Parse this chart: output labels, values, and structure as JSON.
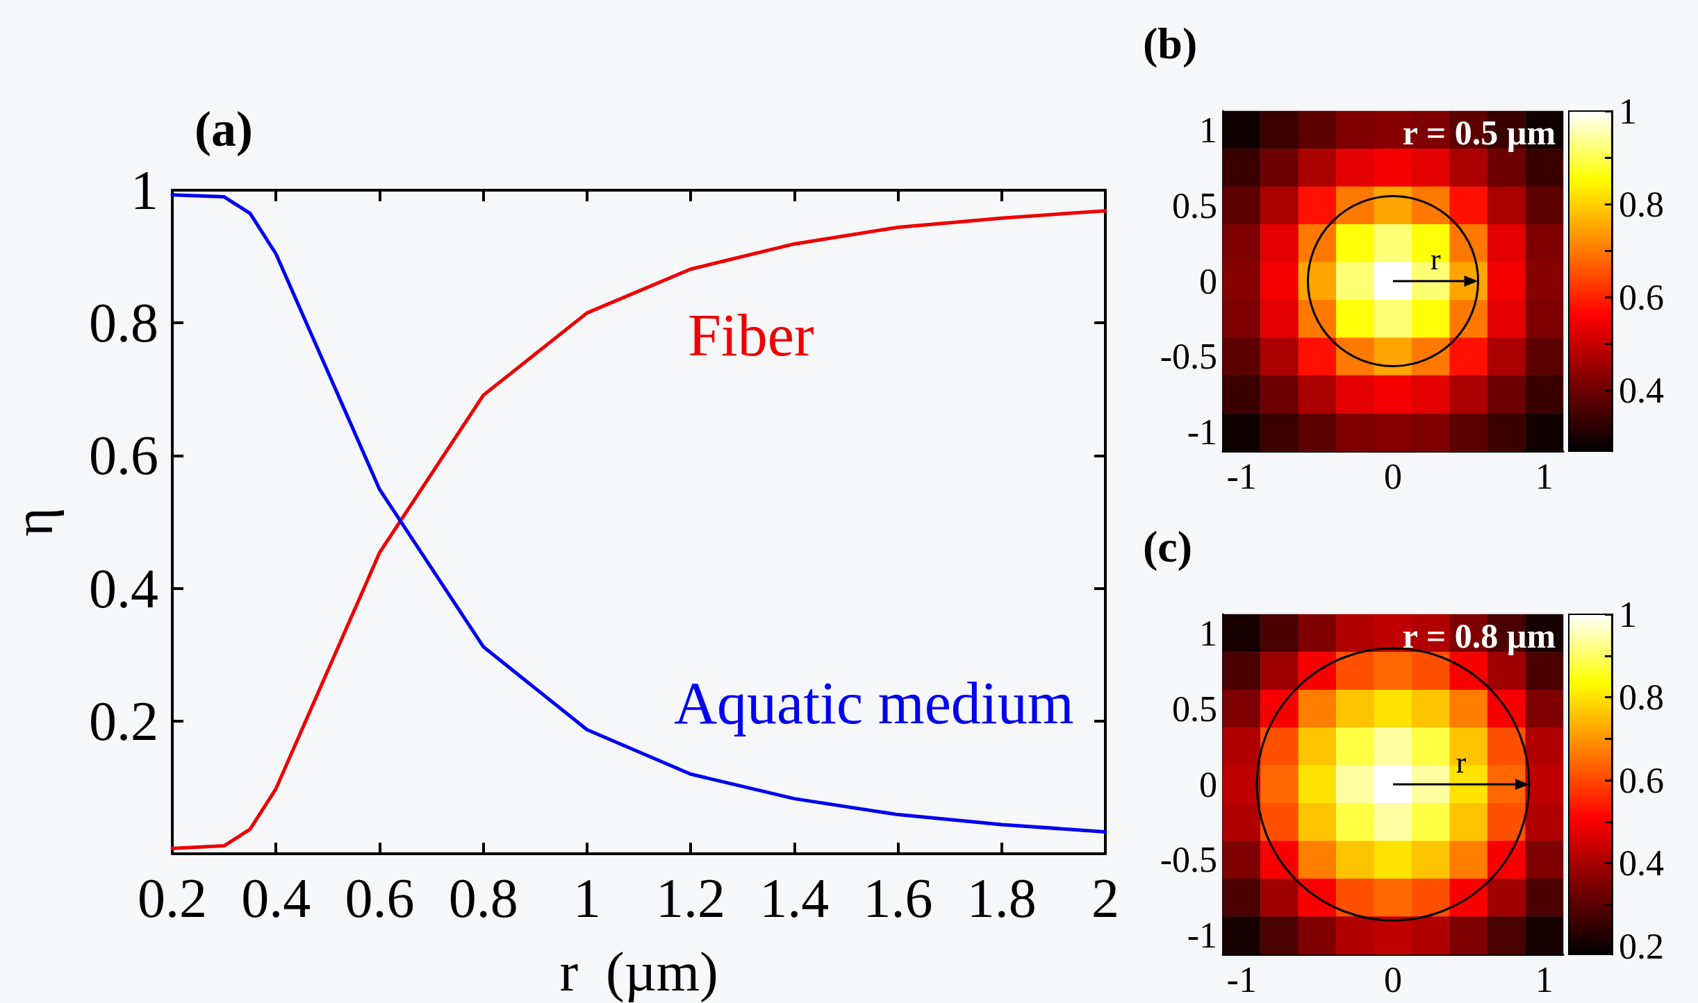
{
  "chart_data": [
    {
      "type": "line",
      "title": "(a)",
      "xlabel": "r  (µm)",
      "ylabel": "η",
      "xlim": [
        0.2,
        2
      ],
      "xticks": [
        0.2,
        0.4,
        0.6,
        0.8,
        1,
        1.2,
        1.4,
        1.6,
        1.8,
        2
      ],
      "ylim": [
        0,
        1
      ],
      "yticks": [
        0.2,
        0.4,
        0.6,
        0.8,
        1
      ],
      "x": [
        0.2,
        0.3,
        0.35,
        0.4,
        0.6,
        0.8,
        1,
        1.2,
        1.4,
        1.6,
        1.8,
        2
      ],
      "series": [
        {
          "name": "Fiber",
          "color": "#ee0000",
          "values": [
            0.008,
            0.012,
            0.037,
            0.098,
            0.454,
            0.691,
            0.815,
            0.881,
            0.919,
            0.944,
            0.958,
            0.969
          ]
        },
        {
          "name": "Aquatic medium",
          "color": "#0000ee",
          "values": [
            0.993,
            0.99,
            0.965,
            0.904,
            0.549,
            0.312,
            0.187,
            0.12,
            0.083,
            0.059,
            0.044,
            0.033
          ]
        }
      ]
    },
    {
      "type": "heatmap",
      "title": "(b)",
      "annotations": [
        "r = 0.5 µm",
        "r"
      ],
      "clim": [
        0.27,
        1
      ],
      "cticks": [
        {
          "value": 0.3,
          "label": null
        },
        0.4,
        {
          "value": 0.5,
          "label": null
        },
        0.6,
        {
          "value": 0.7,
          "label": null
        },
        0.8,
        {
          "value": 0.9,
          "label": null
        },
        1
      ],
      "categories": [
        "-1",
        null,
        null,
        null,
        "0",
        null,
        null,
        null,
        "1"
      ],
      "y_categories": [
        "1",
        null,
        "0.5",
        null,
        "0",
        null,
        "-0.5",
        null,
        "-1"
      ],
      "cells": [
        [
          0.29,
          0.34,
          0.38,
          0.42,
          0.43,
          0.42,
          0.38,
          0.34,
          0.29
        ],
        [
          0.34,
          0.4,
          0.47,
          0.53,
          0.55,
          0.53,
          0.47,
          0.4,
          0.34
        ],
        [
          0.38,
          0.47,
          0.58,
          0.7,
          0.75,
          0.7,
          0.58,
          0.47,
          0.38
        ],
        [
          0.42,
          0.53,
          0.7,
          0.86,
          0.92,
          0.86,
          0.7,
          0.53,
          0.42
        ],
        [
          0.43,
          0.55,
          0.75,
          0.92,
          1,
          0.92,
          0.75,
          0.55,
          0.43
        ],
        [
          0.42,
          0.53,
          0.7,
          0.86,
          0.92,
          0.86,
          0.7,
          0.53,
          0.42
        ],
        [
          0.38,
          0.47,
          0.58,
          0.7,
          0.75,
          0.7,
          0.58,
          0.47,
          0.38
        ],
        [
          0.34,
          0.4,
          0.47,
          0.53,
          0.55,
          0.53,
          0.47,
          0.4,
          0.34
        ],
        [
          0.29,
          0.34,
          0.38,
          0.42,
          0.43,
          0.42,
          0.38,
          0.34,
          0.29
        ]
      ]
    },
    {
      "type": "heatmap",
      "title": "(c)",
      "annotations": [
        "r = 0.8 µm",
        "r"
      ],
      "clim": [
        0.18,
        1
      ],
      "cticks": [
        0.2,
        {
          "value": 0.3,
          "label": null
        },
        0.4,
        {
          "value": 0.5,
          "label": null
        },
        0.6,
        {
          "value": 0.7,
          "label": null
        },
        0.8,
        {
          "value": 0.9,
          "label": null
        },
        1
      ],
      "categories": [
        "-1",
        null,
        null,
        null,
        "0",
        null,
        null,
        null,
        "1"
      ],
      "y_categories": [
        "1",
        null,
        "0.5",
        null,
        "0",
        null,
        "-0.5",
        null,
        "-1"
      ],
      "cells": [
        [
          0.21,
          0.28,
          0.35,
          0.41,
          0.43,
          0.41,
          0.35,
          0.28,
          0.21
        ],
        [
          0.28,
          0.39,
          0.5,
          0.61,
          0.64,
          0.61,
          0.5,
          0.39,
          0.28
        ],
        [
          0.35,
          0.5,
          0.67,
          0.76,
          0.8,
          0.76,
          0.67,
          0.5,
          0.35
        ],
        [
          0.41,
          0.61,
          0.76,
          0.88,
          0.94,
          0.88,
          0.76,
          0.61,
          0.41
        ],
        [
          0.43,
          0.64,
          0.8,
          0.94,
          1,
          0.94,
          0.8,
          0.64,
          0.43
        ],
        [
          0.41,
          0.61,
          0.76,
          0.88,
          0.94,
          0.88,
          0.76,
          0.61,
          0.41
        ],
        [
          0.35,
          0.5,
          0.67,
          0.76,
          0.8,
          0.76,
          0.67,
          0.5,
          0.35
        ],
        [
          0.28,
          0.39,
          0.5,
          0.61,
          0.64,
          0.61,
          0.5,
          0.39,
          0.28
        ],
        [
          0.21,
          0.28,
          0.35,
          0.41,
          0.43,
          0.41,
          0.35,
          0.28,
          0.21
        ]
      ]
    }
  ]
}
